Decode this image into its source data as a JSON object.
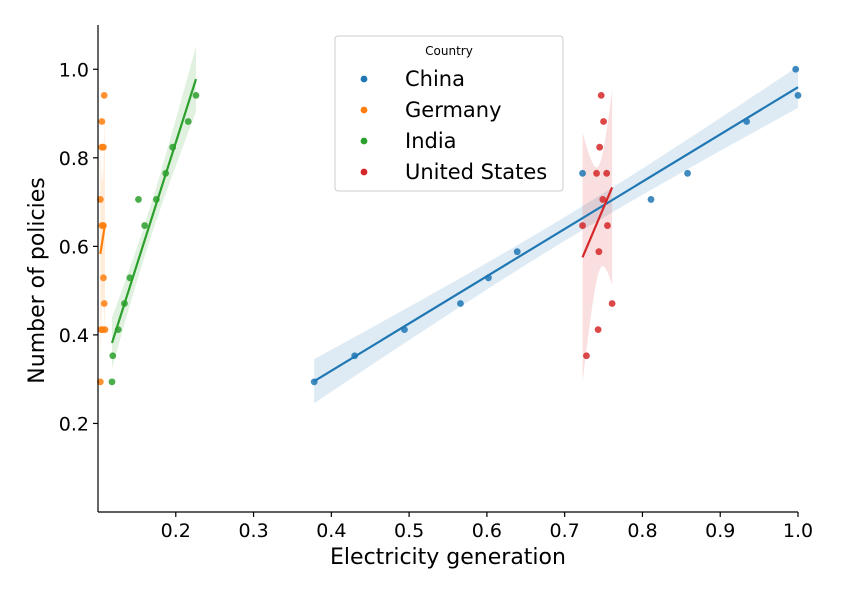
{
  "chart_data": {
    "type": "scatter",
    "xlabel": "Electricity generation",
    "ylabel": "Number of policies",
    "xlim": [
      0.1,
      1.0
    ],
    "ylim": [
      0.0,
      1.1
    ],
    "x_ticks": [
      "0.2",
      "0.3",
      "0.4",
      "0.5",
      "0.6",
      "0.7",
      "0.8",
      "0.9",
      "1.0"
    ],
    "y_ticks": [
      "0.2",
      "0.4",
      "0.6",
      "0.8",
      "1.0"
    ],
    "grid": false,
    "legend": {
      "title": "Country",
      "placement": "top-center"
    },
    "regression": {
      "show": true,
      "confidence_band": true
    },
    "series": [
      {
        "name": "China",
        "color": "#1f77b4",
        "points": [
          [
            0.378,
            0.294
          ],
          [
            0.43,
            0.353
          ],
          [
            0.494,
            0.412
          ],
          [
            0.566,
            0.471
          ],
          [
            0.602,
            0.529
          ],
          [
            0.639,
            0.588
          ],
          [
            0.723,
            0.765
          ],
          [
            0.811,
            0.706
          ],
          [
            0.858,
            0.765
          ],
          [
            0.934,
            0.882
          ],
          [
            0.997,
            1.0
          ],
          [
            1.0,
            0.941
          ]
        ]
      },
      {
        "name": "Germany",
        "color": "#ff7f0e",
        "points": [
          [
            0.103,
            0.294
          ],
          [
            0.103,
            0.706
          ],
          [
            0.104,
            0.412
          ],
          [
            0.105,
            0.647
          ],
          [
            0.105,
            0.824
          ],
          [
            0.105,
            0.882
          ],
          [
            0.106,
            0.412
          ],
          [
            0.107,
            0.529
          ],
          [
            0.107,
            0.647
          ],
          [
            0.107,
            0.824
          ],
          [
            0.108,
            0.471
          ],
          [
            0.108,
            0.941
          ],
          [
            0.109,
            0.412
          ]
        ]
      },
      {
        "name": "India",
        "color": "#2ca02c",
        "points": [
          [
            0.118,
            0.294
          ],
          [
            0.119,
            0.353
          ],
          [
            0.126,
            0.412
          ],
          [
            0.134,
            0.471
          ],
          [
            0.141,
            0.529
          ],
          [
            0.152,
            0.706
          ],
          [
            0.16,
            0.647
          ],
          [
            0.175,
            0.706
          ],
          [
            0.187,
            0.765
          ],
          [
            0.196,
            0.824
          ],
          [
            0.216,
            0.882
          ],
          [
            0.226,
            0.941
          ]
        ]
      },
      {
        "name": "United States",
        "color": "#d62728",
        "points": [
          [
            0.723,
            0.647
          ],
          [
            0.728,
            0.353
          ],
          [
            0.741,
            0.765
          ],
          [
            0.743,
            0.412
          ],
          [
            0.744,
            0.588
          ],
          [
            0.745,
            0.824
          ],
          [
            0.747,
            0.941
          ],
          [
            0.749,
            0.706
          ],
          [
            0.75,
            0.882
          ],
          [
            0.754,
            0.765
          ],
          [
            0.755,
            0.647
          ],
          [
            0.761,
            0.471
          ]
        ]
      }
    ]
  }
}
